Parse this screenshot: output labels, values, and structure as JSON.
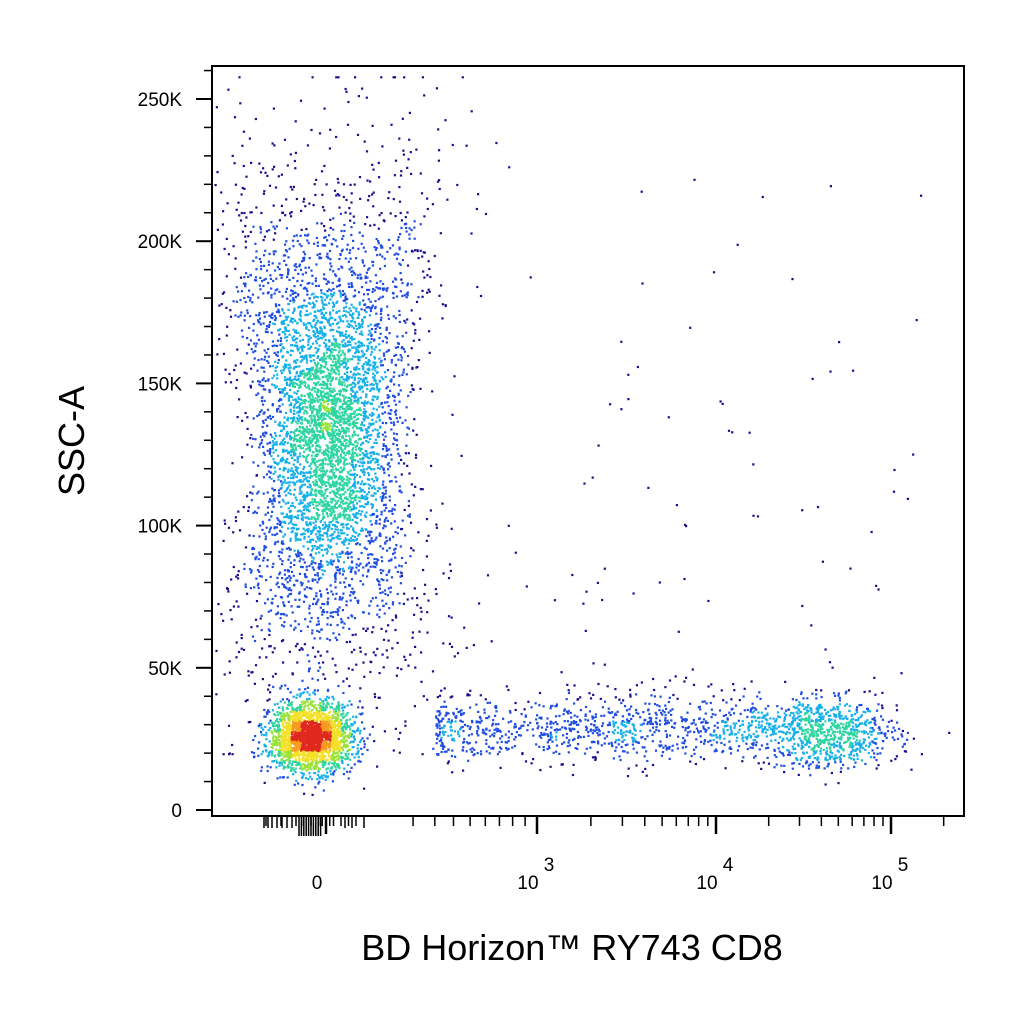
{
  "chart_data": {
    "type": "scatter",
    "style": "flow-cytometry pseudocolor density dot plot",
    "xlabel": "BD Horizon™ RY743 CD8",
    "ylabel": "SSC-A",
    "x_scale": "biexponential",
    "x_ticks": [
      {
        "value": 0,
        "label": "0",
        "exp": ""
      },
      {
        "value": 1000,
        "label": "10",
        "exp": "3"
      },
      {
        "value": 10000,
        "label": "10",
        "exp": "4"
      },
      {
        "value": 100000,
        "label": "10",
        "exp": "5"
      }
    ],
    "y_scale": "linear",
    "ylim": [
      0,
      262144
    ],
    "y_ticks": [
      {
        "value": 0,
        "label": "0"
      },
      {
        "value": 50000,
        "label": "50K"
      },
      {
        "value": 100000,
        "label": "100K"
      },
      {
        "value": 150000,
        "label": "150K"
      },
      {
        "value": 200000,
        "label": "200K"
      },
      {
        "value": 250000,
        "label": "250K"
      }
    ],
    "grid": false,
    "legend": "none",
    "colormap": [
      "#1a0f8c",
      "#1f4de0",
      "#17b0e8",
      "#2fd5a0",
      "#9be23a",
      "#f2e02a",
      "#f79a1e",
      "#e0281e"
    ],
    "populations": [
      {
        "name": "CD8-negative, high SSC",
        "x_center": 0,
        "y_center": 135000,
        "x_spread": 550,
        "y_spread": 42000,
        "count": 5200
      },
      {
        "name": "CD8-negative, low SSC",
        "x_center": 0,
        "y_center": 26000,
        "x_spread": 230,
        "y_spread": 6000,
        "count": 2200
      },
      {
        "name": "CD8-positive, low SSC",
        "x_center": 48000,
        "y_center": 27000,
        "x_spread": 0.18,
        "y_spread": 6000,
        "count": 650
      },
      {
        "name": "CD8-intermediate bridge",
        "x_range": [
          300,
          40000
        ],
        "y_center": 29000,
        "y_spread": 6000,
        "count": 1100
      },
      {
        "name": "scattered events",
        "x_range": [
          200,
          150000
        ],
        "y_range": [
          20000,
          240000
        ],
        "count": 130
      }
    ]
  }
}
